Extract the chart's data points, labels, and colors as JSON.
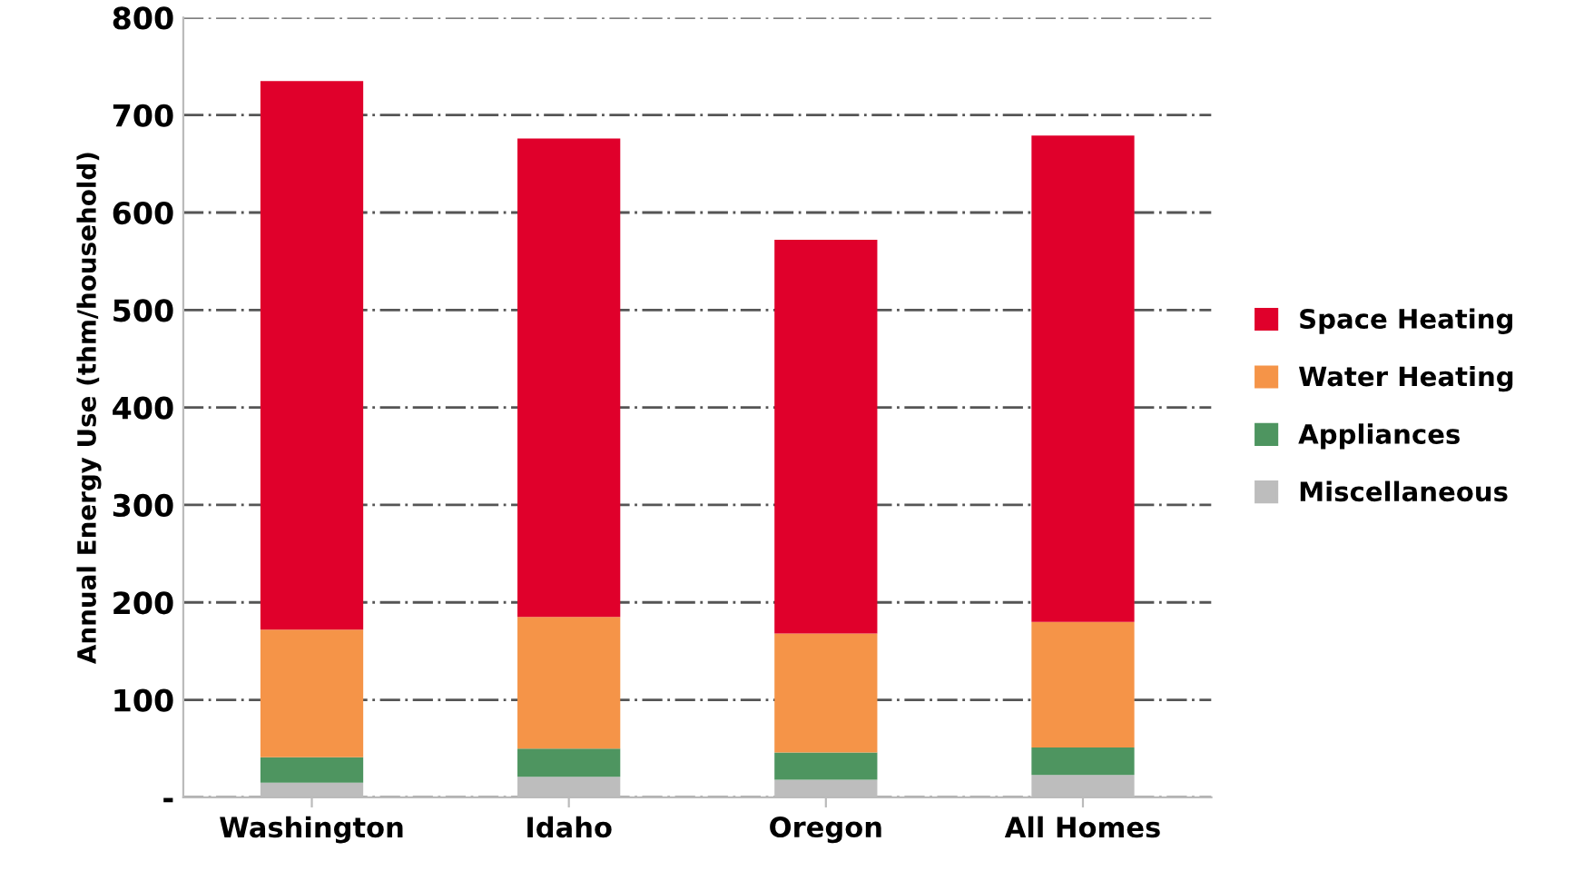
{
  "chart_data": {
    "type": "bar",
    "stacked": true,
    "ylabel": "Annual Energy Use (thm/household)",
    "categories": [
      "Washington",
      "Idaho",
      "Oregon",
      "All Homes"
    ],
    "series": [
      {
        "name": "Miscellaneous",
        "color": "#bdbdbd",
        "values": [
          15,
          21,
          18,
          23
        ]
      },
      {
        "name": "Appliances",
        "color": "#4e9560",
        "values": [
          26,
          29,
          28,
          28
        ]
      },
      {
        "name": "Water Heating",
        "color": "#f59448",
        "values": [
          131,
          135,
          122,
          129
        ]
      },
      {
        "name": "Space Heating",
        "color": "#e0002b",
        "values": [
          563,
          491,
          404,
          499
        ]
      }
    ],
    "ylim": [
      0,
      800
    ],
    "yticks": [
      {
        "value": 0,
        "label": "-"
      },
      100,
      200,
      300,
      400,
      500,
      600,
      700,
      800
    ],
    "grid": "y",
    "legend": "right"
  }
}
